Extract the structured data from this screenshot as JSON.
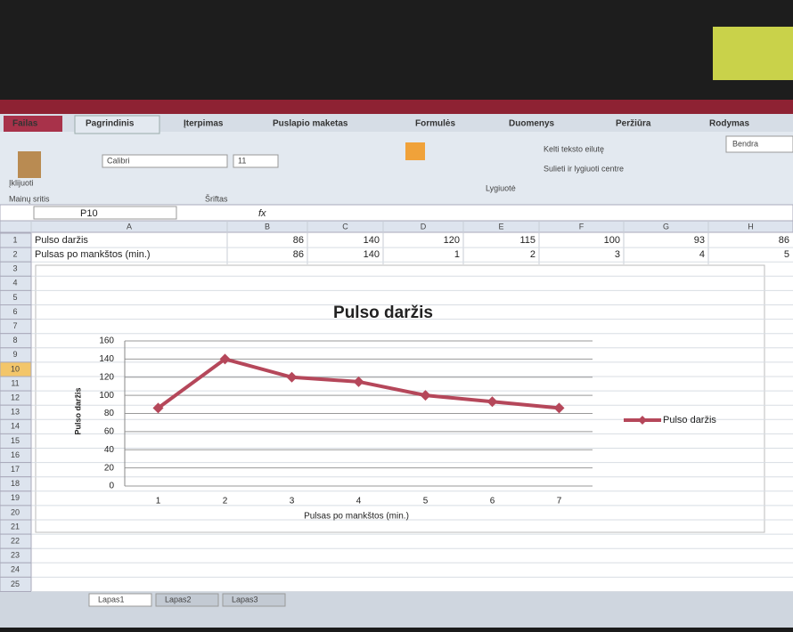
{
  "ribbon": {
    "tabs": [
      "Failas",
      "Pagrindinis",
      "Įterpimas",
      "Puslapio maketas",
      "Formulės",
      "Duomenys",
      "Peržiūra",
      "Rodymas"
    ],
    "font_name": "Calibri",
    "font_size": "11",
    "paste": "Įklijuoti",
    "groups": [
      "Mainų sritis",
      "Šriftas",
      "Lygiuotė"
    ],
    "wrap_text": "Kelti teksto eilutę",
    "merge": "Sulieti ir lygiuoti centre",
    "number_format": "Bendra"
  },
  "name_box": "P10",
  "formula_label": "fx",
  "columns": [
    "A",
    "B",
    "C",
    "D",
    "E",
    "F",
    "G",
    "H"
  ],
  "rows": [
    [
      "Pulso daržis",
      86,
      140,
      120,
      115,
      100,
      93,
      86
    ],
    [
      "Pulsas po mankštos (min.)",
      86,
      140,
      1,
      2,
      3,
      4,
      5
    ]
  ],
  "row_numbers": [
    1,
    2,
    3,
    4,
    5,
    6,
    7,
    8,
    9,
    10,
    11,
    12,
    13,
    14,
    15,
    16,
    17,
    18,
    19,
    20,
    21,
    22,
    23,
    24,
    25
  ],
  "sheets": [
    "Lapas1",
    "Lapas2",
    "Lapas3"
  ],
  "chart_data": {
    "type": "line",
    "title": "Pulso daržis",
    "y_label": "Pulso daržis",
    "x_label": "Pulsas po mankštos (min.)",
    "categories": [
      "1",
      "2",
      "3",
      "4",
      "5",
      "6",
      "7"
    ],
    "series": [
      {
        "name": "Pulso daržis",
        "color": "#b5475a",
        "values": [
          86,
          140,
          120,
          115,
          100,
          93,
          86
        ]
      }
    ],
    "ylim": [
      0,
      160
    ],
    "yticks": [
      0,
      20,
      40,
      60,
      80,
      100,
      120,
      140,
      160
    ],
    "grid": true,
    "legend": "right"
  }
}
